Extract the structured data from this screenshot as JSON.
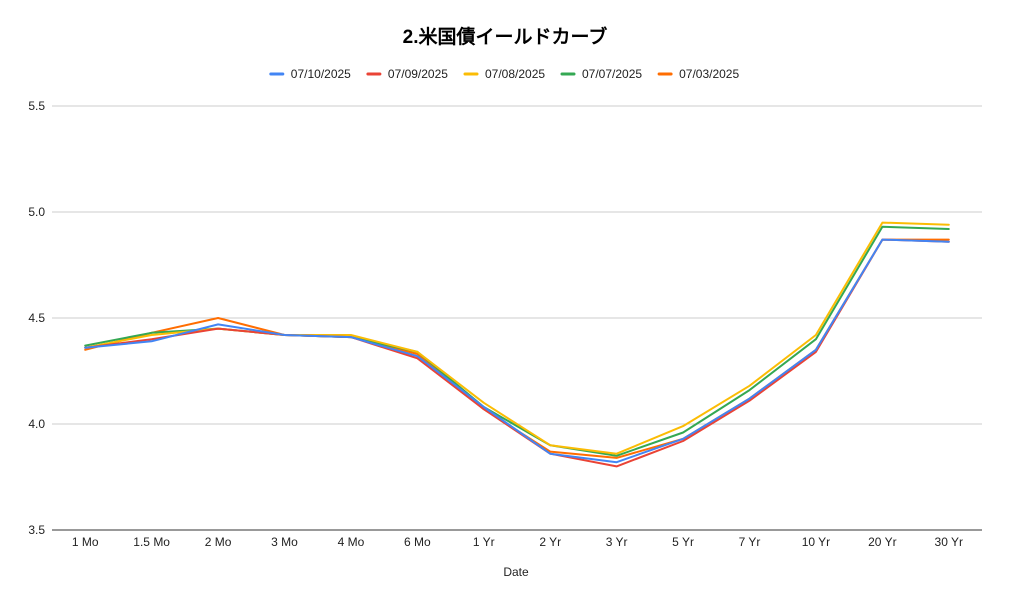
{
  "chart_data": {
    "type": "line",
    "title": "2.米国債イールドカーブ",
    "xlabel": "Date",
    "ylabel": "",
    "ylim": [
      3.5,
      5.5
    ],
    "yticks": [
      "3.5",
      "4.0",
      "4.5",
      "5.0",
      "5.5"
    ],
    "grid": true,
    "legend_position": "top",
    "categories": [
      "1 Mo",
      "1.5 Mo",
      "2 Mo",
      "3 Mo",
      "4 Mo",
      "6 Mo",
      "1 Yr",
      "2 Yr",
      "3 Yr",
      "5 Yr",
      "7 Yr",
      "10 Yr",
      "20 Yr",
      "30 Yr"
    ],
    "series": [
      {
        "name": "07/10/2025",
        "color": "#4285f4",
        "values": [
          4.36,
          4.39,
          4.47,
          4.42,
          4.41,
          4.32,
          4.08,
          3.86,
          3.82,
          3.93,
          4.12,
          4.35,
          4.87,
          4.86
        ]
      },
      {
        "name": "07/09/2025",
        "color": "#ea4335",
        "values": [
          4.36,
          4.4,
          4.45,
          4.42,
          4.41,
          4.31,
          4.07,
          3.86,
          3.8,
          3.92,
          4.11,
          4.34,
          4.87,
          4.86
        ]
      },
      {
        "name": "07/08/2025",
        "color": "#fbbc04",
        "values": [
          4.36,
          4.42,
          4.45,
          4.42,
          4.42,
          4.34,
          4.1,
          3.9,
          3.86,
          3.99,
          4.18,
          4.42,
          4.95,
          4.94
        ]
      },
      {
        "name": "07/07/2025",
        "color": "#34a853",
        "values": [
          4.37,
          4.43,
          4.45,
          4.42,
          4.41,
          4.34,
          4.08,
          3.9,
          3.85,
          3.96,
          4.16,
          4.4,
          4.93,
          4.92
        ]
      },
      {
        "name": "07/03/2025",
        "color": "#ff6d01",
        "values": [
          4.35,
          4.43,
          4.5,
          4.42,
          4.41,
          4.33,
          4.07,
          3.87,
          3.84,
          3.93,
          4.12,
          4.35,
          4.87,
          4.87
        ]
      }
    ]
  }
}
